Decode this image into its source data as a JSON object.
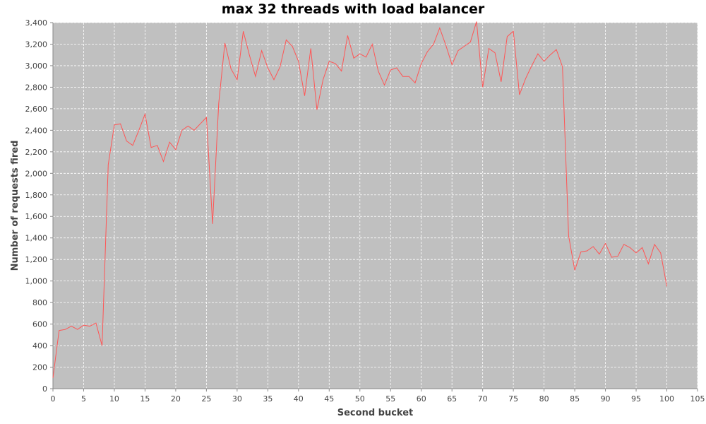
{
  "chart_data": {
    "type": "line",
    "title": "max 32 threads with load balancer",
    "xlabel": "Second bucket",
    "ylabel": "Number of requests fired",
    "xlim": [
      0,
      105
    ],
    "ylim": [
      0,
      3400
    ],
    "x_ticks": [
      0,
      5,
      10,
      15,
      20,
      25,
      30,
      35,
      40,
      45,
      50,
      55,
      60,
      65,
      70,
      75,
      80,
      85,
      90,
      95,
      100,
      105
    ],
    "y_ticks": [
      0,
      200,
      400,
      600,
      800,
      1000,
      1200,
      1400,
      1600,
      1800,
      2000,
      2200,
      2400,
      2600,
      2800,
      3000,
      3200,
      3400
    ],
    "x_tick_labels": [
      "0",
      "5",
      "10",
      "15",
      "20",
      "25",
      "30",
      "35",
      "40",
      "45",
      "50",
      "55",
      "60",
      "65",
      "70",
      "75",
      "80",
      "85",
      "90",
      "95",
      "100",
      "105"
    ],
    "y_tick_labels": [
      "0",
      "200",
      "400",
      "600",
      "800",
      "1,000",
      "1,200",
      "1,400",
      "1,600",
      "1,800",
      "2,000",
      "2,200",
      "2,400",
      "2,600",
      "2,800",
      "3,000",
      "3,200",
      "3,400"
    ],
    "grid": true,
    "plot_background": "#c0c0c0",
    "grid_color": "#ffffff",
    "series": [
      {
        "color": "#ff5555",
        "x": [
          0,
          1,
          2,
          3,
          4,
          5,
          6,
          7,
          8,
          9,
          10,
          11,
          12,
          13,
          14,
          15,
          16,
          17,
          18,
          19,
          20,
          21,
          22,
          23,
          24,
          25,
          26,
          27,
          28,
          29,
          30,
          31,
          32,
          33,
          34,
          35,
          36,
          37,
          38,
          39,
          40,
          41,
          42,
          43,
          44,
          45,
          46,
          47,
          48,
          49,
          50,
          51,
          52,
          53,
          54,
          55,
          56,
          57,
          58,
          59,
          60,
          61,
          62,
          63,
          64,
          65,
          66,
          67,
          68,
          69,
          70,
          71,
          72,
          73,
          74,
          75,
          76,
          77,
          78,
          79,
          80,
          81,
          82,
          83,
          84,
          85,
          86,
          87,
          88,
          89,
          90,
          91,
          92,
          93,
          94,
          95,
          96,
          97,
          98,
          99,
          100
        ],
        "y": [
          100,
          540,
          550,
          580,
          550,
          590,
          580,
          610,
          400,
          2080,
          2450,
          2460,
          2300,
          2260,
          2400,
          2550,
          2240,
          2260,
          2110,
          2290,
          2220,
          2400,
          2440,
          2400,
          2460,
          2520,
          1530,
          2650,
          3210,
          2970,
          2870,
          3320,
          3100,
          2900,
          3140,
          2980,
          2870,
          2990,
          3240,
          3180,
          3040,
          2720,
          3160,
          2590,
          2870,
          3040,
          3020,
          2950,
          3280,
          3070,
          3110,
          3080,
          3200,
          2950,
          2820,
          2960,
          2980,
          2900,
          2900,
          2840,
          3020,
          3130,
          3200,
          3350,
          3190,
          3010,
          3140,
          3180,
          3220,
          3410,
          2800,
          3160,
          3120,
          2850,
          3270,
          3320,
          2730,
          2880,
          3000,
          3110,
          3040,
          3100,
          3150,
          2990,
          1420,
          1100,
          1270,
          1280,
          1320,
          1250,
          1350,
          1220,
          1230,
          1340,
          1310,
          1260,
          1310,
          1160,
          1340,
          1260,
          950
        ]
      }
    ]
  }
}
